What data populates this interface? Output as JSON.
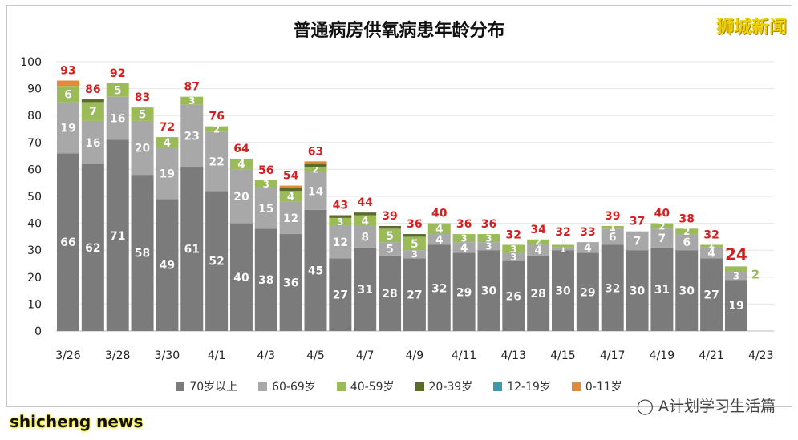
{
  "chart_data": {
    "type": "bar",
    "stacked": true,
    "title": "普通病房供氧病患年龄分布",
    "categories": [
      "3/26",
      "3/27",
      "3/28",
      "3/29",
      "3/30",
      "3/31",
      "4/1",
      "4/2",
      "4/3",
      "4/4",
      "4/5",
      "4/6",
      "4/7",
      "4/8",
      "4/9",
      "4/10",
      "4/11",
      "4/12",
      "4/13",
      "4/14",
      "4/15",
      "4/16",
      "4/17",
      "4/18",
      "4/19",
      "4/20",
      "4/21",
      "4/22"
    ],
    "x_tick_labels": [
      "3/26",
      "3/28",
      "3/30",
      "4/1",
      "4/3",
      "4/5",
      "4/7",
      "4/9",
      "4/11",
      "4/13",
      "4/15",
      "4/17",
      "4/19",
      "4/21",
      "4/23"
    ],
    "y_ticks": [
      0,
      10,
      20,
      30,
      40,
      50,
      60,
      70,
      80,
      90,
      100
    ],
    "ylim": [
      0,
      100
    ],
    "grid": true,
    "legend_position": "bottom",
    "series": [
      {
        "name": "70岁以上",
        "color": "#7b7b7b",
        "values": [
          66,
          62,
          71,
          58,
          49,
          61,
          52,
          40,
          38,
          36,
          45,
          27,
          31,
          28,
          27,
          32,
          29,
          30,
          26,
          28,
          30,
          29,
          32,
          30,
          31,
          30,
          27,
          19
        ]
      },
      {
        "name": "60-69岁",
        "color": "#a8a8a8",
        "values": [
          19,
          16,
          16,
          20,
          19,
          23,
          22,
          20,
          15,
          12,
          14,
          12,
          8,
          5,
          3,
          4,
          4,
          3,
          3,
          4,
          1,
          4,
          6,
          7,
          7,
          6,
          4,
          3
        ]
      },
      {
        "name": "40-59岁",
        "color": "#9bbb59",
        "values": [
          6,
          7,
          5,
          5,
          4,
          3,
          2,
          4,
          3,
          4,
          2,
          3,
          4,
          5,
          5,
          4,
          3,
          3,
          3,
          2,
          1,
          0,
          1,
          0,
          2,
          2,
          1,
          2
        ]
      },
      {
        "name": "20-39岁",
        "color": "#5b6b2e",
        "values": [
          0,
          1,
          0,
          0,
          0,
          0,
          0,
          0,
          0,
          1,
          1,
          1,
          1,
          1,
          1,
          0,
          0,
          0,
          0,
          0,
          0,
          0,
          0,
          0,
          0,
          0,
          0,
          0
        ]
      },
      {
        "name": "12-19岁",
        "color": "#3f9aa8",
        "values": [
          0,
          0,
          0,
          0,
          0,
          0,
          0,
          0,
          0,
          0,
          0,
          0,
          0,
          0,
          0,
          0,
          0,
          0,
          0,
          0,
          0,
          0,
          0,
          0,
          0,
          0,
          0,
          0
        ]
      },
      {
        "name": "0-11岁",
        "color": "#e08a3c",
        "values": [
          2,
          0,
          0,
          0,
          0,
          0,
          0,
          0,
          0,
          1,
          1,
          0,
          0,
          0,
          0,
          0,
          0,
          0,
          0,
          0,
          0,
          0,
          0,
          0,
          0,
          0,
          0,
          0
        ]
      }
    ],
    "totals": [
      93,
      86,
      92,
      83,
      72,
      87,
      76,
      64,
      56,
      54,
      63,
      43,
      44,
      39,
      36,
      40,
      36,
      36,
      32,
      34,
      32,
      33,
      39,
      37,
      40,
      38,
      32,
      24
    ],
    "total_label_color": "#d42020"
  },
  "watermarks": {
    "top_right": "狮城新闻",
    "bottom_left": "shicheng news",
    "bottom_right": "A计划学习生活篇"
  }
}
